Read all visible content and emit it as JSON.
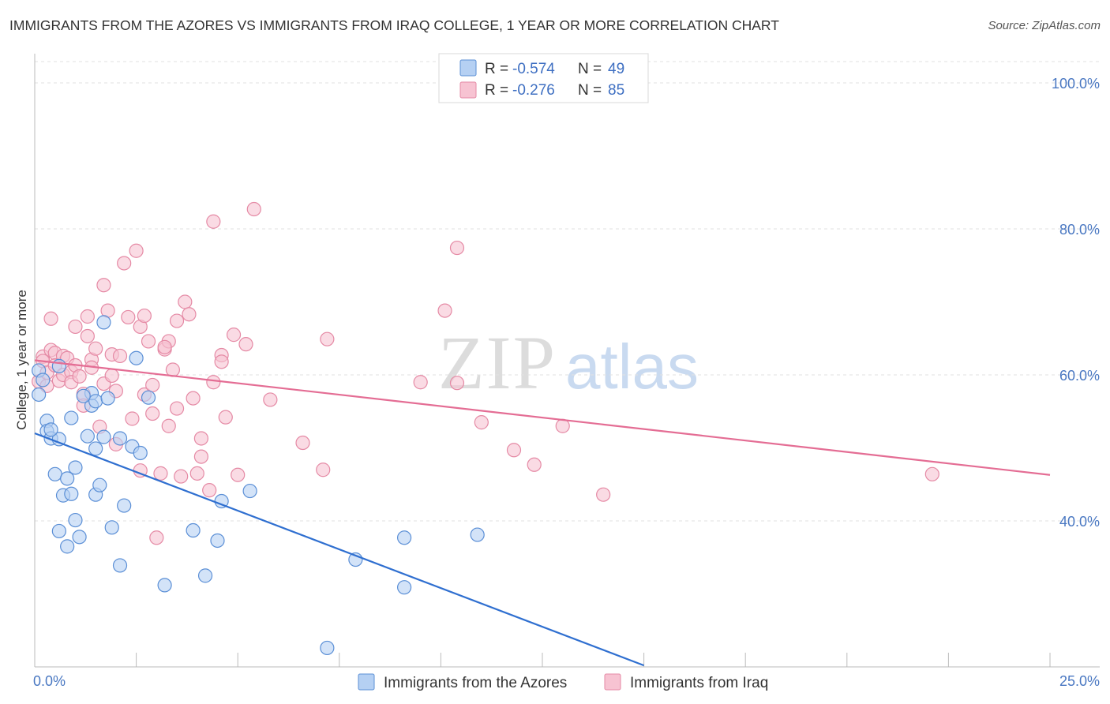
{
  "title": "IMMIGRANTS FROM THE AZORES VS IMMIGRANTS FROM IRAQ COLLEGE, 1 YEAR OR MORE CORRELATION CHART",
  "source": "Source: ZipAtlas.com",
  "watermark": {
    "part1": "ZIP",
    "part2": "atlas"
  },
  "colors": {
    "azores_fill": "#b5d0f3",
    "azores_stroke": "#5b8fd6",
    "azores_line": "#2f6fd0",
    "iraq_fill": "#f7c3d2",
    "iraq_stroke": "#e58aa5",
    "iraq_line": "#e46d94",
    "tick_label": "#4a78c2",
    "grid": "#e2e2e2"
  },
  "legend": {
    "rows": [
      {
        "r_label": "R =",
        "r_value": "-0.574",
        "n_label": "N =",
        "n_value": "49"
      },
      {
        "r_label": "R =",
        "r_value": "-0.276",
        "n_label": "N =",
        "n_value": "85"
      }
    ]
  },
  "chart_data": {
    "type": "scatter",
    "title": "IMMIGRANTS FROM THE AZORES VS IMMIGRANTS FROM IRAQ COLLEGE, 1 YEAR OR MORE CORRELATION CHART",
    "xlabel": "",
    "ylabel": "College, 1 year or more",
    "xlim": [
      0,
      25
    ],
    "ylim": [
      20,
      104
    ],
    "x_tick_labels": [
      "0.0%",
      "25.0%"
    ],
    "y_ticks": [
      40,
      60,
      80,
      100
    ],
    "y_tick_labels": [
      "40.0%",
      "60.0%",
      "80.0%",
      "100.0%"
    ],
    "grid": true,
    "legend_position": "top-center",
    "series": [
      {
        "name": "Immigrants from the Azores",
        "r": -0.574,
        "n": 49,
        "trend": {
          "x": [
            0.0,
            15.0
          ],
          "y": [
            52.0,
            20.2
          ]
        },
        "points": [
          [
            0.1,
            60.6
          ],
          [
            0.1,
            57.3
          ],
          [
            0.3,
            53.7
          ],
          [
            0.3,
            52.3
          ],
          [
            0.4,
            51.3
          ],
          [
            0.5,
            46.4
          ],
          [
            0.6,
            51.2
          ],
          [
            0.6,
            38.6
          ],
          [
            0.7,
            43.5
          ],
          [
            0.8,
            36.5
          ],
          [
            0.8,
            45.8
          ],
          [
            0.9,
            54.1
          ],
          [
            0.9,
            43.7
          ],
          [
            1.0,
            40.1
          ],
          [
            1.0,
            47.3
          ],
          [
            1.1,
            37.8
          ],
          [
            1.3,
            51.6
          ],
          [
            1.4,
            55.8
          ],
          [
            1.4,
            57.5
          ],
          [
            1.5,
            43.6
          ],
          [
            1.5,
            56.4
          ],
          [
            1.5,
            49.9
          ],
          [
            1.6,
            44.9
          ],
          [
            1.7,
            67.2
          ],
          [
            1.7,
            51.5
          ],
          [
            1.8,
            56.8
          ],
          [
            1.9,
            39.1
          ],
          [
            2.1,
            33.9
          ],
          [
            2.1,
            51.3
          ],
          [
            2.2,
            42.1
          ],
          [
            2.4,
            50.2
          ],
          [
            2.5,
            62.3
          ],
          [
            2.6,
            49.3
          ],
          [
            2.8,
            56.9
          ],
          [
            3.2,
            31.2
          ],
          [
            3.9,
            38.7
          ],
          [
            4.2,
            32.5
          ],
          [
            4.5,
            37.3
          ],
          [
            4.6,
            42.7
          ],
          [
            5.3,
            44.1
          ],
          [
            7.9,
            34.7
          ],
          [
            9.1,
            37.7
          ],
          [
            9.1,
            30.9
          ],
          [
            10.9,
            38.1
          ],
          [
            7.2,
            22.6
          ],
          [
            0.2,
            59.3
          ],
          [
            0.6,
            61.2
          ],
          [
            1.2,
            57.1
          ],
          [
            0.4,
            52.5
          ]
        ]
      },
      {
        "name": "Immigrants from Iraq",
        "r": -0.276,
        "n": 85,
        "trend": {
          "x": [
            0.0,
            25.0
          ],
          "y": [
            62.0,
            46.3
          ]
        },
        "points": [
          [
            0.1,
            59.1
          ],
          [
            0.2,
            62.5
          ],
          [
            0.2,
            61.9
          ],
          [
            0.3,
            58.5
          ],
          [
            0.3,
            60.3
          ],
          [
            0.4,
            63.4
          ],
          [
            0.4,
            67.7
          ],
          [
            0.5,
            63.0
          ],
          [
            0.5,
            61.3
          ],
          [
            0.6,
            59.2
          ],
          [
            0.7,
            62.6
          ],
          [
            0.7,
            60.0
          ],
          [
            0.8,
            62.3
          ],
          [
            0.9,
            60.4
          ],
          [
            0.9,
            59.0
          ],
          [
            1.0,
            66.6
          ],
          [
            1.0,
            61.3
          ],
          [
            1.1,
            59.8
          ],
          [
            1.2,
            57.4
          ],
          [
            1.2,
            55.8
          ],
          [
            1.3,
            65.3
          ],
          [
            1.3,
            68.0
          ],
          [
            1.4,
            62.1
          ],
          [
            1.4,
            61.0
          ],
          [
            1.5,
            63.6
          ],
          [
            1.6,
            52.9
          ],
          [
            1.7,
            72.3
          ],
          [
            1.7,
            58.8
          ],
          [
            1.8,
            68.8
          ],
          [
            1.9,
            59.9
          ],
          [
            1.9,
            62.8
          ],
          [
            2.0,
            50.5
          ],
          [
            2.0,
            57.8
          ],
          [
            2.1,
            62.6
          ],
          [
            2.2,
            75.3
          ],
          [
            2.3,
            67.9
          ],
          [
            2.4,
            54.0
          ],
          [
            2.5,
            77.0
          ],
          [
            2.6,
            46.9
          ],
          [
            2.6,
            66.6
          ],
          [
            2.7,
            68.1
          ],
          [
            2.7,
            57.3
          ],
          [
            2.8,
            64.6
          ],
          [
            2.9,
            58.6
          ],
          [
            2.9,
            54.7
          ],
          [
            3.0,
            37.7
          ],
          [
            3.1,
            46.5
          ],
          [
            3.2,
            63.5
          ],
          [
            3.3,
            64.6
          ],
          [
            3.3,
            53.0
          ],
          [
            3.4,
            60.7
          ],
          [
            3.5,
            55.4
          ],
          [
            3.5,
            67.4
          ],
          [
            3.6,
            46.1
          ],
          [
            3.7,
            70.0
          ],
          [
            3.8,
            68.3
          ],
          [
            3.9,
            56.8
          ],
          [
            4.0,
            46.5
          ],
          [
            4.1,
            48.8
          ],
          [
            4.1,
            51.3
          ],
          [
            4.3,
            44.2
          ],
          [
            4.4,
            59.0
          ],
          [
            4.4,
            81.0
          ],
          [
            4.6,
            62.7
          ],
          [
            4.6,
            61.8
          ],
          [
            4.7,
            54.2
          ],
          [
            4.9,
            65.5
          ],
          [
            5.0,
            46.3
          ],
          [
            5.2,
            64.2
          ],
          [
            5.4,
            82.7
          ],
          [
            5.8,
            56.6
          ],
          [
            6.6,
            50.7
          ],
          [
            7.1,
            47.0
          ],
          [
            7.2,
            64.9
          ],
          [
            9.5,
            59.0
          ],
          [
            10.1,
            68.8
          ],
          [
            10.4,
            77.4
          ],
          [
            10.4,
            58.9
          ],
          [
            11.0,
            53.5
          ],
          [
            11.8,
            49.7
          ],
          [
            12.3,
            47.7
          ],
          [
            13.0,
            53.0
          ],
          [
            14.0,
            43.6
          ],
          [
            22.1,
            46.4
          ],
          [
            3.2,
            63.8
          ]
        ]
      }
    ]
  },
  "y_axis_label": "College, 1 year or more",
  "x_axis": {
    "min_label": "0.0%",
    "max_label": "25.0%"
  },
  "y_axis": {
    "labels": [
      "100.0%",
      "80.0%",
      "60.0%",
      "40.0%"
    ]
  },
  "bottom_legend": [
    {
      "label": "Immigrants from the Azores"
    },
    {
      "label": "Immigrants from Iraq"
    }
  ]
}
